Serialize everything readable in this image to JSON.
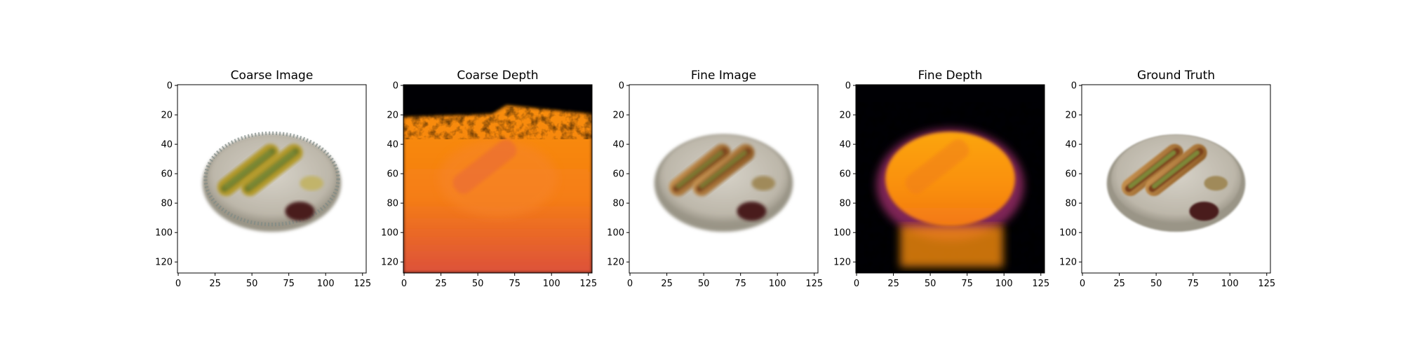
{
  "chart_data": [
    {
      "type": "image",
      "title": "Coarse Image",
      "render": "coarse-rgb",
      "xlim": [
        0,
        127
      ],
      "ylim": [
        127,
        0
      ],
      "xticks": [
        0,
        25,
        50,
        75,
        100,
        125
      ],
      "yticks": [
        0,
        20,
        40,
        60,
        80,
        100,
        120
      ]
    },
    {
      "type": "heatmap",
      "title": "Coarse Depth",
      "colormap": "inferno",
      "render": "coarse-depth",
      "xlim": [
        0,
        127
      ],
      "ylim": [
        127,
        0
      ],
      "xticks": [
        0,
        25,
        50,
        75,
        100,
        125
      ],
      "yticks": [
        0,
        20,
        40,
        60,
        80,
        100,
        120
      ]
    },
    {
      "type": "image",
      "title": "Fine Image",
      "render": "fine-rgb",
      "xlim": [
        0,
        127
      ],
      "ylim": [
        127,
        0
      ],
      "xticks": [
        0,
        25,
        50,
        75,
        100,
        125
      ],
      "yticks": [
        0,
        20,
        40,
        60,
        80,
        100,
        120
      ]
    },
    {
      "type": "heatmap",
      "title": "Fine Depth",
      "colormap": "inferno",
      "render": "fine-depth",
      "xlim": [
        0,
        127
      ],
      "ylim": [
        127,
        0
      ],
      "xticks": [
        0,
        25,
        50,
        75,
        100,
        125
      ],
      "yticks": [
        0,
        20,
        40,
        60,
        80,
        100,
        120
      ]
    },
    {
      "type": "image",
      "title": "Ground Truth",
      "render": "gt-rgb",
      "xlim": [
        0,
        127
      ],
      "ylim": [
        127,
        0
      ],
      "xticks": [
        0,
        25,
        50,
        75,
        100,
        125
      ],
      "yticks": [
        0,
        20,
        40,
        60,
        80,
        100,
        120
      ]
    }
  ],
  "colors": {
    "plate": "#c9c3b6",
    "plate_rim": "#9a9587",
    "bun": "#b07a3a",
    "sausage": "#7a3f1e",
    "relish": "#7d8f3a",
    "sauce": "#4a1f1f",
    "depth_far": "#000004",
    "depth_mid": "#bc3754",
    "depth_near": "#f98e09",
    "depth_peak": "#fcffa4"
  }
}
